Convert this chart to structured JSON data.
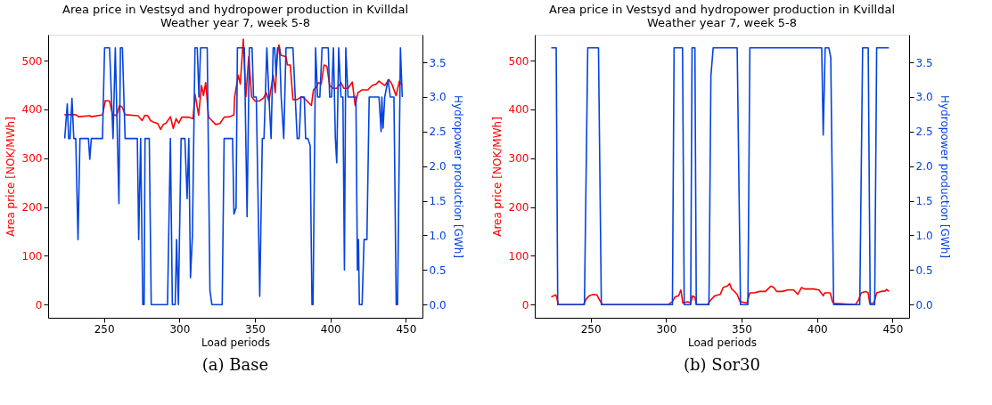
{
  "chart_data": [
    {
      "type": "line",
      "title": "Area price in Vestsyd and hydropower production in Kvilldal",
      "subtitle": "Weather year 7, week 5-8",
      "xlabel": "Load periods",
      "ylabel": "Area price [NOK/MWh]",
      "y2label": "Hydropower production [GWh]",
      "annotations": [
        "(a) Base"
      ],
      "xlim": [
        213,
        461
      ],
      "xticks": [
        250,
        300,
        350,
        400,
        450
      ],
      "ylim": [
        -27,
        553
      ],
      "yticks": [
        0,
        100,
        200,
        300,
        400,
        500
      ],
      "y2lim": [
        -0.19,
        3.9
      ],
      "y2ticks": [
        {
          "value": 0,
          "label": "0.0"
        },
        {
          "value": 0.5,
          "label": "0.5"
        },
        {
          "value": 1,
          "label": "1.0"
        },
        {
          "value": 1.5,
          "label": "1.5"
        },
        {
          "value": 2,
          "label": "2.0"
        },
        {
          "value": 2.5,
          "label": "2.5"
        },
        {
          "value": 3,
          "label": "3.0"
        },
        {
          "value": 3.5,
          "label": "3.5"
        }
      ],
      "grid": false,
      "series": [
        {
          "color": "#ff0000",
          "x": [
            223.8,
            231.3,
            233.1,
            240.6,
            241.6,
            249.1,
            250,
            250.9,
            253.7,
            255.6,
            258.4,
            260.3,
            262.2,
            264,
            272.5,
            275.3,
            277.2,
            279,
            280.9,
            282.8,
            285.6,
            287.5,
            289.3,
            291.2,
            294,
            295.9,
            297.8,
            299.6,
            301.5,
            306.2,
            309,
            310.3,
            312.7,
            314.6,
            315.9,
            317.4,
            319.3,
            321.2,
            324,
            326.8,
            329.6,
            333.3,
            336.1,
            336.5,
            338.9,
            340.3,
            342.3,
            344,
            345.9,
            347.8,
            350,
            352.8,
            355.6,
            357.5,
            359.3,
            362.1,
            363.5,
            364.6,
            365.9,
            367.2,
            370.6,
            371.5,
            373.4,
            375.2,
            378,
            380.8,
            382.7,
            387.4,
            388.8,
            390.7,
            392,
            393.9,
            395.8,
            397.7,
            399.5,
            402,
            404.2,
            407,
            408.9,
            411.7,
            414.5,
            416.4,
            418.2,
            421,
            424.8,
            427.6,
            430.4,
            432.2,
            436,
            438.8,
            440.7,
            443.5,
            445.7,
            447.6
          ],
          "values": [
            389,
            389,
            385,
            387,
            385,
            389,
            404,
            418,
            417,
            390,
            387,
            408,
            404,
            389,
            387,
            377,
            388,
            387,
            377,
            374,
            371,
            359,
            369,
            372,
            385,
            361,
            381,
            372,
            384,
            384,
            381,
            431,
            388,
            449,
            428,
            455,
            384,
            378,
            369,
            371,
            384,
            385,
            389,
            424,
            470,
            452,
            544,
            426,
            508,
            426,
            417,
            417,
            423,
            434,
            417,
            470,
            434,
            505,
            532,
            511,
            508,
            491,
            491,
            420,
            420,
            426,
            423,
            408,
            440,
            446,
            455,
            452,
            491,
            488,
            449,
            443,
            443,
            455,
            443,
            443,
            456,
            408,
            434,
            440,
            440,
            449,
            452,
            458,
            449,
            461,
            452,
            428,
            458,
            449
          ]
        },
        {
          "color": "#0343df",
          "axis": "y2",
          "x": [
            224,
            225.7,
            226.6,
            227.5,
            228.8,
            230,
            231.3,
            232.8,
            234.1,
            239.7,
            240.6,
            241.6,
            249,
            250.4,
            253.7,
            256,
            257.5,
            259.9,
            260.9,
            262.2,
            264,
            272.1,
            273,
            274.3,
            275.7,
            276.6,
            277.2,
            280,
            281.3,
            292.1,
            294,
            295.3,
            297.2,
            298.1,
            299.3,
            301.1,
            303.6,
            305.1,
            306.2,
            307.3,
            308.6,
            310.3,
            311.8,
            312.9,
            314,
            318.4,
            320.2,
            321.5,
            328.3,
            329.6,
            335.2,
            336.1,
            337.5,
            338.4,
            343,
            344.8,
            346.3,
            348.1,
            349.1,
            350.9,
            353.2,
            354.9,
            356,
            357.9,
            359.3,
            360.7,
            362.1,
            363.1,
            364,
            365,
            366.3,
            367.4,
            369.1,
            370.6,
            375.2,
            376.7,
            378,
            379.3,
            380.5,
            382.7,
            383.6,
            385.1,
            386.6,
            387.8,
            388.5,
            390.2,
            391.5,
            393,
            394.5,
            398.6,
            399.5,
            400.8,
            402,
            403.3,
            404.2,
            405.5,
            407,
            408.3,
            409.3,
            410.2,
            411.7,
            416.9,
            417.9,
            418.6,
            419.2,
            421,
            422.3,
            424.2,
            425.7,
            430.4,
            432.2,
            433.6,
            434.1,
            434.9,
            436,
            438.2,
            439.7,
            442.1,
            443.6,
            444.5,
            446.4,
            447.6
          ],
          "values": [
            2.4,
            2.9,
            2.4,
            2.4,
            2.98,
            2.4,
            2.4,
            0.94,
            2.4,
            2.4,
            2.1,
            2.4,
            2.4,
            3.71,
            3.71,
            2.4,
            3.71,
            1.46,
            3.71,
            3.71,
            2.4,
            2.4,
            0.94,
            2.4,
            0,
            0,
            2.4,
            2.4,
            0,
            0,
            2.4,
            0,
            0,
            0.94,
            0,
            2.4,
            2.4,
            1.53,
            2.4,
            0.39,
            1.0,
            3.71,
            3.71,
            3.0,
            3.71,
            3.71,
            0.2,
            0,
            0,
            2.4,
            2.4,
            1.31,
            1.4,
            3.71,
            3.71,
            1.27,
            3.71,
            3.71,
            3.0,
            3.0,
            0.12,
            2.4,
            2.4,
            3.71,
            3.0,
            2.4,
            3.71,
            3.71,
            3.3,
            3.71,
            3.71,
            3.0,
            2.4,
            3.71,
            3.71,
            3.0,
            2.4,
            2.4,
            3.0,
            3.0,
            2.4,
            2.4,
            2.3,
            0,
            0,
            3.71,
            3.0,
            3.0,
            3.71,
            3.71,
            3.0,
            3.0,
            3.71,
            2.4,
            2.05,
            3.71,
            3.0,
            3.0,
            0.5,
            3.71,
            3.0,
            3.0,
            0.5,
            0.94,
            0,
            0,
            0.94,
            0.94,
            3.0,
            3.0,
            3.0,
            2.5,
            3.0,
            2.55,
            3.0,
            3.25,
            3.0,
            3.0,
            0,
            0,
            3.71,
            3.0
          ]
        }
      ]
    },
    {
      "type": "line",
      "title": "Area price in Vestsyd and hydropower production in Kvilldal",
      "subtitle": "Weather year 7, week 5-8",
      "xlabel": "Load periods",
      "ylabel": "Area price [NOK/MWh]",
      "y2label": "Hydropower production [GWh]",
      "annotations": [
        "(b) Sor30"
      ],
      "xlim": [
        213,
        461
      ],
      "xticks": [
        250,
        300,
        350,
        400,
        450
      ],
      "ylim": [
        -27,
        553
      ],
      "yticks": [
        0,
        100,
        200,
        300,
        400,
        500
      ],
      "y2lim": [
        -0.19,
        3.9
      ],
      "y2ticks": [
        {
          "value": 0,
          "label": "0.0"
        },
        {
          "value": 0.5,
          "label": "0.5"
        },
        {
          "value": 1,
          "label": "1.0"
        },
        {
          "value": 1.5,
          "label": "1.5"
        },
        {
          "value": 2,
          "label": "2.0"
        },
        {
          "value": 2.5,
          "label": "2.5"
        },
        {
          "value": 3,
          "label": "3.0"
        },
        {
          "value": 3.5,
          "label": "3.5"
        }
      ],
      "grid": false,
      "series": [
        {
          "color": "#ff0000",
          "x": [
            223.9,
            225.7,
            226.7,
            227.6,
            228.5,
            245.3,
            247.2,
            249.1,
            251.9,
            254.1,
            256,
            257.8,
            301.4,
            304.2,
            306,
            308.3,
            309.8,
            311.1,
            314.4,
            316.3,
            317.6,
            319.1,
            320,
            327.5,
            329.4,
            332.2,
            335.9,
            337.8,
            340.6,
            342.1,
            343.4,
            344.3,
            347.1,
            349,
            353.6,
            355.5,
            358.3,
            362,
            365.8,
            369.5,
            371.4,
            373.2,
            377,
            380.7,
            384.5,
            387.3,
            389.7,
            391.9,
            397.5,
            401.3,
            404.1,
            405,
            406.9,
            408.7,
            410.2,
            411.5,
            414.3,
            425.5,
            427.4,
            429.3,
            432.1,
            433.9,
            434.9,
            437.7,
            439.5,
            442.3,
            445.1,
            446.1,
            447.6
          ],
          "values": [
            16,
            18,
            20,
            15,
            0,
            0,
            12,
            18,
            21,
            20,
            9,
            0,
            0,
            6,
            16,
            18,
            30,
            3,
            6,
            3,
            18,
            15,
            0,
            0,
            9,
            18,
            21,
            35,
            38,
            43,
            32,
            30,
            21,
            6,
            3,
            24,
            24,
            27,
            27,
            38,
            35,
            27,
            27,
            30,
            30,
            21,
            35,
            32,
            32,
            30,
            18,
            24,
            24,
            24,
            6,
            2,
            2,
            0,
            9,
            24,
            27,
            24,
            3,
            3,
            24,
            27,
            28,
            31,
            27
          ]
        },
        {
          "color": "#0343df",
          "axis": "y2",
          "x": [
            223.9,
            227.2,
            228.2,
            245.9,
            248.1,
            255.2,
            257.1,
            304.2,
            305.3,
            310.9,
            312,
            316.3,
            317.2,
            319.1,
            320,
            328.4,
            329.7,
            331.2,
            347.1,
            349.3,
            354.2,
            355.5,
            403.1,
            404.1,
            405.4,
            407.8,
            409.1,
            411,
            428.3,
            430.2,
            433.9,
            435.2,
            438.2,
            439.5,
            447.6
          ],
          "values": [
            3.71,
            3.71,
            0,
            0,
            3.71,
            3.71,
            0,
            0,
            3.71,
            3.71,
            0,
            0,
            3.71,
            3.71,
            0,
            0,
            3.31,
            3.71,
            3.71,
            0,
            0,
            3.71,
            3.71,
            2.45,
            3.71,
            3.71,
            3.57,
            0,
            0,
            3.71,
            3.71,
            0,
            0,
            3.71,
            3.71
          ]
        }
      ]
    }
  ]
}
